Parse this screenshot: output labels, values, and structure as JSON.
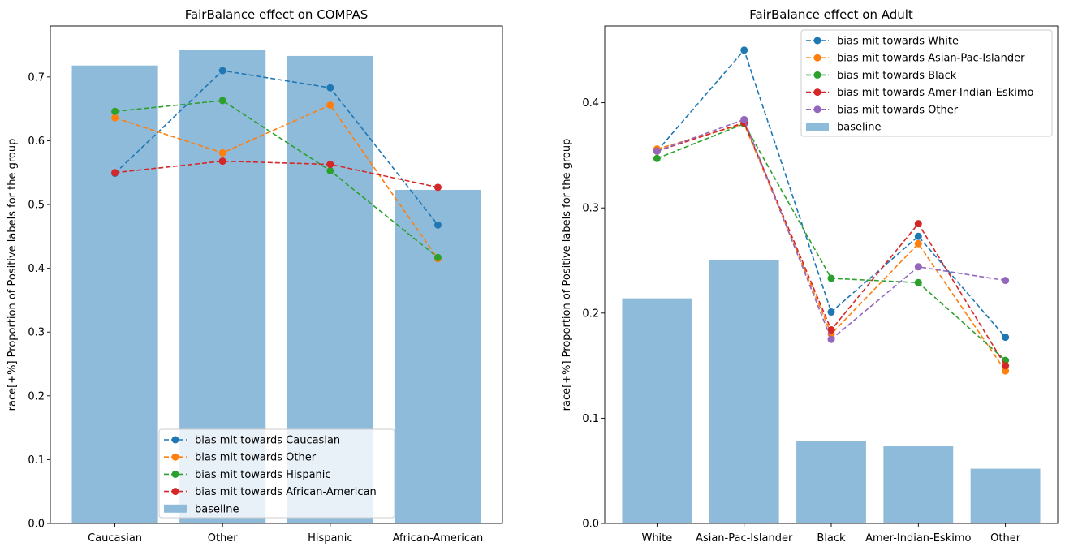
{
  "chart_data": [
    {
      "type": "bar",
      "title": "FairBalance effect on COMPAS",
      "xlabel": "",
      "ylabel": "race[+%] Proportion of Positive labels for the group",
      "categories": [
        "Caucasian",
        "Other",
        "Hispanic",
        "African-American"
      ],
      "ylim": [
        0,
        0.78
      ],
      "yticks": [
        0.0,
        0.1,
        0.2,
        0.3,
        0.4,
        0.5,
        0.6,
        0.7
      ],
      "grid": false,
      "legend_position": "lower-center",
      "baseline": {
        "name": "baseline",
        "values": [
          0.718,
          0.743,
          0.733,
          0.523
        ],
        "color": "#8fbbda"
      },
      "series": [
        {
          "name": "bias mit towards Caucasian",
          "values": [
            0.549,
            0.71,
            0.683,
            0.468
          ],
          "color": "#1f77b4"
        },
        {
          "name": "bias mit towards Other",
          "values": [
            0.636,
            0.581,
            0.656,
            0.415
          ],
          "color": "#ff7f0e"
        },
        {
          "name": "bias mit towards Hispanic",
          "values": [
            0.646,
            0.663,
            0.553,
            0.417
          ],
          "color": "#2ca02c"
        },
        {
          "name": "bias mit towards African-American",
          "values": [
            0.55,
            0.568,
            0.563,
            0.527
          ],
          "color": "#d62728"
        }
      ]
    },
    {
      "type": "bar",
      "title": "FairBalance effect on Adult",
      "xlabel": "",
      "ylabel": "race[+%] Proportion of Positive labels for the group",
      "categories": [
        "White",
        "Asian-Pac-Islander",
        "Black",
        "Amer-Indian-Eskimo",
        "Other"
      ],
      "ylim": [
        0,
        0.473
      ],
      "yticks": [
        0.0,
        0.1,
        0.2,
        0.3,
        0.4
      ],
      "grid": false,
      "legend_position": "upper-right",
      "baseline": {
        "name": "baseline",
        "values": [
          0.214,
          0.25,
          0.078,
          0.074,
          0.052
        ],
        "color": "#8fbbda"
      },
      "series": [
        {
          "name": "bias mit towards White",
          "values": [
            0.354,
            0.45,
            0.201,
            0.273,
            0.177
          ],
          "color": "#1f77b4"
        },
        {
          "name": "bias mit towards Asian-Pac-Islander",
          "values": [
            0.356,
            0.38,
            0.18,
            0.266,
            0.145
          ],
          "color": "#ff7f0e"
        },
        {
          "name": "bias mit towards Black",
          "values": [
            0.347,
            0.38,
            0.233,
            0.229,
            0.155
          ],
          "color": "#2ca02c"
        },
        {
          "name": "bias mit towards Amer-Indian-Eskimo",
          "values": [
            0.354,
            0.381,
            0.184,
            0.285,
            0.15
          ],
          "color": "#d62728"
        },
        {
          "name": "bias mit towards Other",
          "values": [
            0.354,
            0.384,
            0.175,
            0.244,
            0.231
          ],
          "color": "#9467bd"
        }
      ]
    }
  ]
}
